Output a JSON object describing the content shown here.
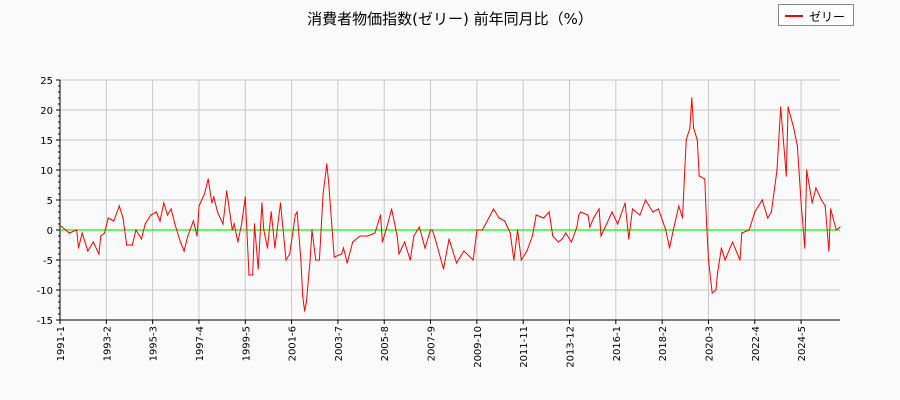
{
  "chart_data": {
    "type": "line",
    "title": "消費者物価指数(ゼリー) 前年同月比（%）",
    "xlabel": "",
    "ylabel": "",
    "ylim": [
      -15,
      25
    ],
    "yticks": [
      -15,
      -10,
      -5,
      0,
      5,
      10,
      15,
      20,
      25
    ],
    "xlim": [
      "1991-01",
      "2026-02"
    ],
    "xticks": [
      "1991-1",
      "1993-2",
      "1995-3",
      "1997-4",
      "1999-5",
      "2001-6",
      "2003-7",
      "2005-8",
      "2007-9",
      "2009-10",
      "2011-11",
      "2013-12",
      "2016-1",
      "2018-2",
      "2020-3",
      "2022-4",
      "2024-5"
    ],
    "grid": true,
    "legend_position": "top-right",
    "reference_line": {
      "y": 0,
      "color": "#00ff00"
    },
    "series": [
      {
        "name": "ゼリー",
        "color": "#ff0000",
        "points": [
          [
            "1991-01",
            0.8
          ],
          [
            "1991-04",
            0
          ],
          [
            "1991-06",
            -0.5
          ],
          [
            "1991-10",
            0
          ],
          [
            "1991-11",
            -3
          ],
          [
            "1992-01",
            -0.5
          ],
          [
            "1992-04",
            -3.5
          ],
          [
            "1992-07",
            -2
          ],
          [
            "1992-10",
            -4
          ],
          [
            "1992-11",
            -1
          ],
          [
            "1993-01",
            -0.5
          ],
          [
            "1993-03",
            2
          ],
          [
            "1993-06",
            1.5
          ],
          [
            "1993-09",
            4
          ],
          [
            "1993-11",
            2
          ],
          [
            "1994-01",
            -2.5
          ],
          [
            "1994-04",
            -2.5
          ],
          [
            "1994-06",
            0
          ],
          [
            "1994-09",
            -1.5
          ],
          [
            "1994-11",
            1
          ],
          [
            "1995-02",
            2.5
          ],
          [
            "1995-05",
            3
          ],
          [
            "1995-07",
            1.5
          ],
          [
            "1995-09",
            4.5
          ],
          [
            "1995-11",
            2.5
          ],
          [
            "1996-01",
            3.5
          ],
          [
            "1996-03",
            1
          ],
          [
            "1996-06",
            -2
          ],
          [
            "1996-08",
            -3.5
          ],
          [
            "1996-10",
            -1
          ],
          [
            "1997-01",
            1.5
          ],
          [
            "1997-03",
            -1
          ],
          [
            "1997-04",
            4
          ],
          [
            "1997-07",
            6
          ],
          [
            "1997-09",
            8.5
          ],
          [
            "1997-11",
            4.5
          ],
          [
            "1997-12",
            5.5
          ],
          [
            "1998-02",
            3
          ],
          [
            "1998-05",
            1
          ],
          [
            "1998-07",
            6.5
          ],
          [
            "1998-10",
            0
          ],
          [
            "1998-11",
            1
          ],
          [
            "1999-01",
            -2
          ],
          [
            "1999-03",
            1
          ],
          [
            "1999-05",
            5.5
          ],
          [
            "1999-07",
            -7.5
          ],
          [
            "1999-09",
            -7.5
          ],
          [
            "1999-10",
            1
          ],
          [
            "1999-12",
            -6.5
          ],
          [
            "2000-02",
            4.5
          ],
          [
            "2000-03",
            0
          ],
          [
            "2000-05",
            -3
          ],
          [
            "2000-07",
            3
          ],
          [
            "2000-09",
            -3
          ],
          [
            "2000-12",
            4.5
          ],
          [
            "2001-03",
            -5
          ],
          [
            "2001-05",
            -4
          ],
          [
            "2001-08",
            2.5
          ],
          [
            "2001-09",
            3
          ],
          [
            "2001-11",
            -5
          ],
          [
            "2001-12",
            -11
          ],
          [
            "2002-01",
            -13.5
          ],
          [
            "2002-02",
            -12
          ],
          [
            "2002-04",
            -5
          ],
          [
            "2002-05",
            0
          ],
          [
            "2002-07",
            -5
          ],
          [
            "2002-09",
            -5
          ],
          [
            "2002-11",
            6
          ],
          [
            "2003-01",
            11
          ],
          [
            "2003-02",
            8
          ],
          [
            "2003-05",
            -4.5
          ],
          [
            "2003-09",
            -4
          ],
          [
            "2003-10",
            -3
          ],
          [
            "2003-12",
            -5.5
          ],
          [
            "2004-03",
            -2
          ],
          [
            "2004-07",
            -1
          ],
          [
            "2004-11",
            -1
          ],
          [
            "2005-03",
            -0.5
          ],
          [
            "2005-06",
            2.5
          ],
          [
            "2005-07",
            -2
          ],
          [
            "2005-09",
            0
          ],
          [
            "2005-12",
            3.5
          ],
          [
            "2006-03",
            -1
          ],
          [
            "2006-04",
            -4
          ],
          [
            "2006-07",
            -2
          ],
          [
            "2006-10",
            -5
          ],
          [
            "2006-12",
            -1
          ],
          [
            "2007-03",
            0.5
          ],
          [
            "2007-06",
            -3
          ],
          [
            "2007-09",
            0
          ],
          [
            "2007-10",
            0
          ],
          [
            "2007-12",
            -2
          ],
          [
            "2008-04",
            -6.5
          ],
          [
            "2008-07",
            -1.5
          ],
          [
            "2008-11",
            -5.5
          ],
          [
            "2009-03",
            -3.5
          ],
          [
            "2009-08",
            -5
          ],
          [
            "2009-10",
            0
          ],
          [
            "2010-01",
            0
          ],
          [
            "2010-07",
            3.5
          ],
          [
            "2010-10",
            2
          ],
          [
            "2011-01",
            1.5
          ],
          [
            "2011-04",
            -0.5
          ],
          [
            "2011-06",
            -5
          ],
          [
            "2011-08",
            0
          ],
          [
            "2011-10",
            -5
          ],
          [
            "2012-01",
            -3.5
          ],
          [
            "2012-04",
            -1
          ],
          [
            "2012-06",
            2.5
          ],
          [
            "2012-10",
            2
          ],
          [
            "2013-01",
            3
          ],
          [
            "2013-03",
            -1
          ],
          [
            "2013-06",
            -2
          ],
          [
            "2013-08",
            -1.5
          ],
          [
            "2013-10",
            -0.5
          ],
          [
            "2014-01",
            -2
          ],
          [
            "2014-04",
            0.5
          ],
          [
            "2014-05",
            2.5
          ],
          [
            "2014-06",
            3
          ],
          [
            "2014-10",
            2.5
          ],
          [
            "2014-11",
            0.5
          ],
          [
            "2015-01",
            2
          ],
          [
            "2015-04",
            3.5
          ],
          [
            "2015-05",
            -1
          ],
          [
            "2015-08",
            1
          ],
          [
            "2015-11",
            3
          ],
          [
            "2016-02",
            1
          ],
          [
            "2016-06",
            4.5
          ],
          [
            "2016-08",
            -1.5
          ],
          [
            "2016-10",
            3.5
          ],
          [
            "2017-02",
            2.5
          ],
          [
            "2017-05",
            5
          ],
          [
            "2017-09",
            3
          ],
          [
            "2017-12",
            3.5
          ],
          [
            "2018-04",
            0
          ],
          [
            "2018-06",
            -3
          ],
          [
            "2018-08",
            0
          ],
          [
            "2018-11",
            4
          ],
          [
            "2019-01",
            2
          ],
          [
            "2019-03",
            15
          ],
          [
            "2019-05",
            17
          ],
          [
            "2019-06",
            22
          ],
          [
            "2019-07",
            17
          ],
          [
            "2019-09",
            15
          ],
          [
            "2019-10",
            9
          ],
          [
            "2020-01",
            8.5
          ],
          [
            "2020-02",
            1
          ],
          [
            "2020-03",
            -5
          ],
          [
            "2020-05",
            -10.5
          ],
          [
            "2020-07",
            -10
          ],
          [
            "2020-08",
            -7
          ],
          [
            "2020-10",
            -3
          ],
          [
            "2020-12",
            -5
          ],
          [
            "2021-04",
            -2
          ],
          [
            "2021-08",
            -5
          ],
          [
            "2021-09",
            -0.5
          ],
          [
            "2022-01",
            0
          ],
          [
            "2022-04",
            3
          ],
          [
            "2022-06",
            4
          ],
          [
            "2022-08",
            5
          ],
          [
            "2022-11",
            2
          ],
          [
            "2023-01",
            3
          ],
          [
            "2023-04",
            10
          ],
          [
            "2023-06",
            20.5
          ],
          [
            "2023-09",
            9
          ],
          [
            "2023-10",
            20.5
          ],
          [
            "2024-01",
            17
          ],
          [
            "2024-03",
            14
          ],
          [
            "2024-05",
            4.5
          ],
          [
            "2024-07",
            -3
          ],
          [
            "2024-08",
            10
          ],
          [
            "2024-11",
            4.5
          ],
          [
            "2025-01",
            7
          ],
          [
            "2025-04",
            5
          ],
          [
            "2025-06",
            4
          ],
          [
            "2025-08",
            -3.5
          ],
          [
            "2025-09",
            3.5
          ],
          [
            "2025-12",
            0
          ],
          [
            "2026-02",
            0.5
          ]
        ]
      }
    ]
  }
}
